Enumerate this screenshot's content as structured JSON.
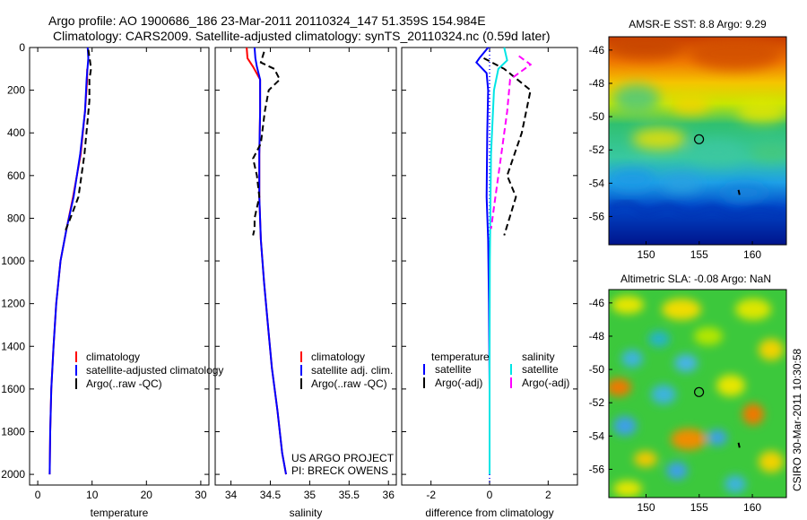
{
  "header": {
    "title_line1": "Argo profile: AO 1900686_186 23-Mar-2011 20110324_147 51.359S 154.984E",
    "title_line2": "Climatology: CARS2009. Satellite-adjusted climatology: synTS_20110324.nc (0.59d later)"
  },
  "credit": "CSIRO 30-Mar-2011 10:30:58",
  "colors": {
    "climatology": "#ff0000",
    "satellite": "#0000ff",
    "argo": "#000000",
    "satellite_diff_salinity": "#00e5e5",
    "argo_diff_salinity": "#ff00ff"
  },
  "chart_data": [
    {
      "id": "temperature",
      "type": "line",
      "xlabel": "temperature",
      "xlim": [
        -1.5,
        31.5
      ],
      "xticks": [
        0,
        10,
        20,
        30
      ],
      "ylim": [
        0,
        2050
      ],
      "yticks": [
        0,
        200,
        400,
        600,
        800,
        1000,
        1200,
        1400,
        1600,
        1800,
        2000
      ],
      "reversed_y": true,
      "legend": {
        "placement": "lower-left",
        "entries": [
          {
            "label": "climatology",
            "series": "climatology"
          },
          {
            "label": "satellite-adjusted climatology",
            "series": "satellite"
          },
          {
            "label": "Argo(..raw -QC)",
            "series": "argo"
          }
        ]
      },
      "series": [
        {
          "name": "climatology",
          "color": "#ff0000",
          "dash": "",
          "x": [
            9.1,
            9.1,
            8.7,
            7.9,
            6.5,
            5.3,
            4.2,
            3.4,
            2.9,
            2.5,
            2.3,
            2.2
          ],
          "y": [
            100,
            150,
            300,
            500,
            700,
            850,
            1000,
            1200,
            1400,
            1600,
            1800,
            2000
          ]
        },
        {
          "name": "satellite-adjusted climatology",
          "color": "#0000ff",
          "dash": "",
          "x": [
            9.2,
            9.3,
            9.0,
            8.7,
            7.8,
            6.6,
            5.3,
            4.2,
            3.4,
            2.9,
            2.5,
            2.3,
            2.2
          ],
          "y": [
            0,
            50,
            150,
            300,
            500,
            700,
            850,
            1000,
            1200,
            1400,
            1600,
            1800,
            2000
          ]
        },
        {
          "name": "Argo(..raw -QC)",
          "color": "#000000",
          "dash": "7,4",
          "x": [
            9.3,
            9.6,
            9.8,
            9.5,
            9.5,
            8.6,
            7.5,
            6.0,
            4.9
          ],
          "y": [
            10,
            60,
            100,
            150,
            250,
            500,
            700,
            800,
            870
          ]
        }
      ]
    },
    {
      "id": "salinity",
      "type": "line",
      "xlabel": "salinity",
      "xlim": [
        33.8,
        36.1
      ],
      "xticks": [
        34,
        34.5,
        35,
        35.5,
        36
      ],
      "ylim": [
        0,
        2050
      ],
      "reversed_y": true,
      "legend": {
        "placement": "lower-right",
        "entries": [
          {
            "label": "climatology",
            "series": "climatology"
          },
          {
            "label": "satellite adj. clim.",
            "series": "satellite"
          },
          {
            "label": "Argo(..raw -QC)",
            "series": "argo"
          }
        ]
      },
      "annotation": [
        "US ARGO PROJECT",
        "PI: BRECK OWENS"
      ],
      "series": [
        {
          "name": "climatology",
          "color": "#ff0000",
          "dash": "",
          "x": [
            34.2,
            34.21,
            34.28,
            34.37,
            34.37,
            34.36,
            34.36,
            34.38,
            34.42,
            34.47,
            34.52,
            34.59,
            34.65,
            34.7
          ],
          "y": [
            0,
            50,
            90,
            150,
            300,
            500,
            700,
            900,
            1100,
            1300,
            1500,
            1700,
            1900,
            2000
          ]
        },
        {
          "name": "satellite adj. clim.",
          "color": "#0000ff",
          "dash": "",
          "x": [
            34.3,
            34.31,
            34.33,
            34.37,
            34.37,
            34.36,
            34.36,
            34.38,
            34.42,
            34.47,
            34.52,
            34.59,
            34.65,
            34.7
          ],
          "y": [
            0,
            50,
            90,
            150,
            300,
            500,
            700,
            900,
            1100,
            1300,
            1500,
            1700,
            1900,
            2000
          ]
        },
        {
          "name": "Argo(..raw -QC)",
          "color": "#000000",
          "dash": "7,4",
          "x": [
            34.42,
            34.38,
            34.55,
            34.62,
            34.48,
            34.43,
            34.38,
            34.28,
            34.33,
            34.36,
            34.3,
            34.3,
            34.28
          ],
          "y": [
            20,
            70,
            100,
            150,
            200,
            300,
            450,
            520,
            600,
            700,
            800,
            850,
            880
          ]
        }
      ]
    },
    {
      "id": "difference",
      "type": "line",
      "xlabel": "difference from climatology",
      "xlim": [
        -3,
        3
      ],
      "xticks": [
        -2,
        0,
        2
      ],
      "ylim": [
        0,
        2050
      ],
      "reversed_y": true,
      "zero_line": true,
      "legend": {
        "placement": "lower",
        "headers": [
          "temperature",
          "salinity"
        ],
        "entries": [
          {
            "label": "satellite",
            "series": "t_satellite"
          },
          {
            "label": "Argo(-adj)",
            "series": "t_argo"
          },
          {
            "label": "satellite",
            "series": "s_satellite"
          },
          {
            "label": "Argo(-adj)",
            "series": "s_argo"
          }
        ]
      },
      "series": [
        {
          "name": "t_satellite",
          "color": "#0000ff",
          "dash": "",
          "x": [
            -0.05,
            -0.35,
            -0.45,
            -0.1,
            -0.05,
            -0.08,
            -0.1,
            -0.05,
            -0.02,
            0,
            0
          ],
          "y": [
            0,
            50,
            70,
            120,
            200,
            400,
            700,
            900,
            1200,
            1600,
            2000
          ]
        },
        {
          "name": "t_argo",
          "color": "#000000",
          "dash": "7,4",
          "x": [
            -0.2,
            0.5,
            1.4,
            1.1,
            0.6,
            0.9,
            0.5
          ],
          "y": [
            50,
            100,
            200,
            400,
            600,
            700,
            880
          ]
        },
        {
          "name": "s_satellite",
          "color": "#00e5e5",
          "dash": "",
          "x": [
            0.5,
            0.6,
            0.3,
            0.15,
            0.05,
            0.01,
            0,
            0
          ],
          "y": [
            0,
            60,
            100,
            200,
            500,
            1000,
            1500,
            2000
          ]
        },
        {
          "name": "s_argo",
          "color": "#ff00ff",
          "dash": "7,4",
          "x": [
            1.0,
            1.4,
            0.7,
            0.6,
            0.4,
            0.2,
            0.05
          ],
          "y": [
            40,
            80,
            150,
            300,
            500,
            700,
            850
          ]
        }
      ]
    },
    {
      "id": "sst_map",
      "type": "heatmap",
      "title": "AMSR-E SST: 8.8 Argo: 9.29",
      "xlim": [
        146.5,
        163.2
      ],
      "xticks": [
        150,
        155,
        160
      ],
      "ylim": [
        -57.7,
        -45.2
      ],
      "yticks": [
        -46,
        -48,
        -50,
        -52,
        -54,
        -56
      ],
      "marker": {
        "lon": 154.984,
        "lat": -51.359
      },
      "track": [
        [
          158.7,
          -54.4
        ],
        [
          158.8,
          -54.7
        ]
      ]
    },
    {
      "id": "sla_map",
      "type": "heatmap",
      "title": "Altimetric SLA: -0.08 Argo: NaN",
      "xlim": [
        146.5,
        163.2
      ],
      "xticks": [
        150,
        155,
        160
      ],
      "ylim": [
        -57.7,
        -45.2
      ],
      "yticks": [
        -46,
        -48,
        -50,
        -52,
        -54,
        -56
      ],
      "marker": {
        "lon": 154.984,
        "lat": -51.359
      },
      "track": [
        [
          158.7,
          -54.4
        ],
        [
          158.8,
          -54.7
        ]
      ]
    }
  ]
}
